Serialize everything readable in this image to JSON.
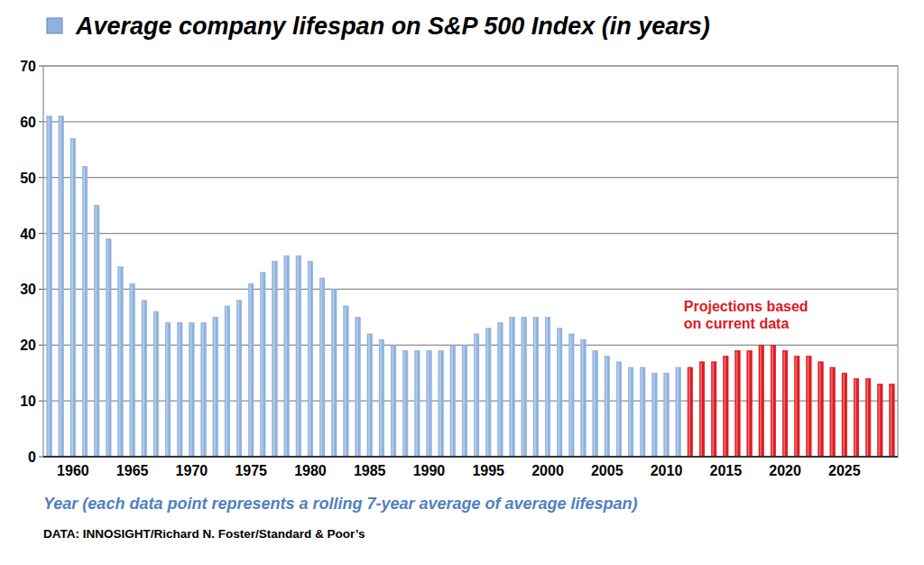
{
  "chart_data": {
    "type": "bar",
    "title": "Average company lifespan on S&P 500 Index (in years)",
    "x_label": "Year (each data point represents a rolling 7-year average of average lifespan)",
    "source": "DATA: INNOSIGHT/Richard N. Foster/Standard & Poor’s",
    "annotations": [
      "Projections based",
      "on current data"
    ],
    "categories": [
      null,
      null,
      "1960",
      null,
      null,
      null,
      null,
      "1965",
      null,
      null,
      null,
      null,
      "1970",
      null,
      null,
      null,
      null,
      "1975",
      null,
      null,
      null,
      null,
      "1980",
      null,
      null,
      null,
      null,
      "1985",
      null,
      null,
      null,
      null,
      "1990",
      null,
      null,
      null,
      null,
      "1995",
      null,
      null,
      null,
      null,
      "2000",
      null,
      null,
      null,
      null,
      "2005",
      null,
      null,
      null,
      null,
      "2010",
      null,
      null,
      null,
      null,
      "2015",
      null,
      null,
      null,
      null,
      "2020",
      null,
      null,
      null,
      null,
      "2025",
      null,
      null,
      null,
      null
    ],
    "values": [
      61,
      61,
      57,
      52,
      45,
      39,
      34,
      31,
      28,
      26,
      24,
      24,
      24,
      24,
      25,
      27,
      28,
      31,
      33,
      35,
      36,
      36,
      35,
      32,
      30,
      27,
      25,
      22,
      21,
      20,
      19,
      19,
      19,
      19,
      20,
      20,
      22,
      23,
      24,
      25,
      25,
      25,
      25,
      23,
      22,
      21,
      19,
      18,
      17,
      16,
      16,
      15,
      15,
      16,
      16,
      17,
      17,
      18,
      19,
      19,
      20,
      20,
      19,
      18,
      18,
      17,
      16,
      15,
      14,
      14,
      13,
      13
    ],
    "colors": [
      "#8eb1de",
      "#8eb1de",
      "#8eb1de",
      "#8eb1de",
      "#8eb1de",
      "#8eb1de",
      "#8eb1de",
      "#8eb1de",
      "#8eb1de",
      "#8eb1de",
      "#8eb1de",
      "#8eb1de",
      "#8eb1de",
      "#8eb1de",
      "#8eb1de",
      "#8eb1de",
      "#8eb1de",
      "#8eb1de",
      "#8eb1de",
      "#8eb1de",
      "#8eb1de",
      "#8eb1de",
      "#8eb1de",
      "#8eb1de",
      "#8eb1de",
      "#8eb1de",
      "#8eb1de",
      "#8eb1de",
      "#8eb1de",
      "#8eb1de",
      "#8eb1de",
      "#8eb1de",
      "#8eb1de",
      "#8eb1de",
      "#8eb1de",
      "#8eb1de",
      "#8eb1de",
      "#8eb1de",
      "#8eb1de",
      "#8eb1de",
      "#8eb1de",
      "#8eb1de",
      "#8eb1de",
      "#8eb1de",
      "#8eb1de",
      "#8eb1de",
      "#8eb1de",
      "#8eb1de",
      "#8eb1de",
      "#8eb1de",
      "#8eb1de",
      "#8eb1de",
      "#8eb1de",
      "#8eb1de",
      "#e0191f",
      "#e0191f",
      "#e0191f",
      "#e0191f",
      "#e0191f",
      "#e0191f",
      "#e0191f",
      "#e0191f",
      "#e0191f",
      "#e0191f",
      "#e0191f",
      "#e0191f",
      "#e0191f",
      "#e0191f",
      "#e0191f",
      "#e0191f",
      "#e0191f",
      "#e0191f"
    ],
    "ylim": [
      0,
      70
    ],
    "yticks": [
      0,
      10,
      20,
      30,
      40,
      50,
      60,
      70
    ],
    "grid": true
  }
}
